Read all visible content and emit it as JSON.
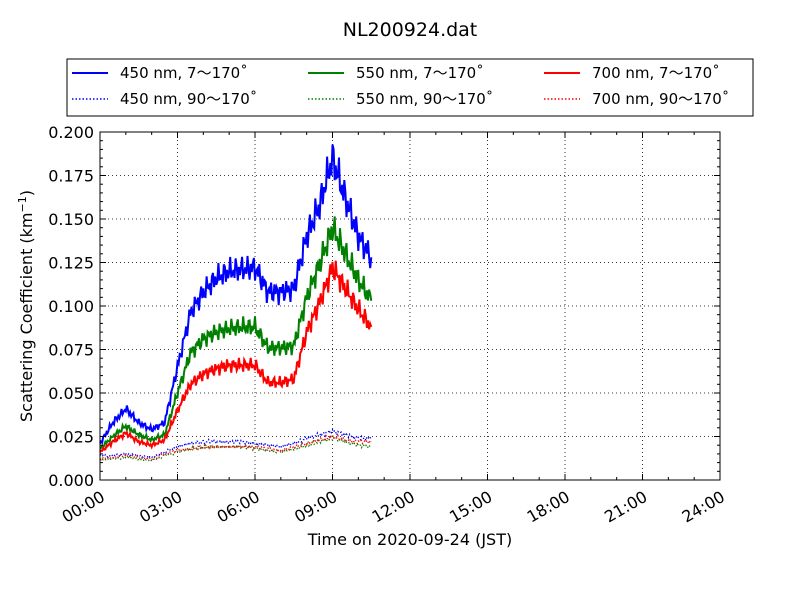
{
  "chart_data": {
    "type": "line",
    "title": "NL200924.dat",
    "xlabel": "Time on 2020-09-24 (JST)",
    "ylabel": "Scattering Coefficient (km",
    "ylabel_sup": "−1",
    "ylabel_end": ")",
    "xlim": [
      "2020-09-24 00:00",
      "2020-09-25 00:00"
    ],
    "ylim": [
      0.0,
      0.2
    ],
    "grid": true,
    "legend_position": "top",
    "x_ticks": [
      "00:00",
      "03:00",
      "06:00",
      "09:00",
      "12:00",
      "15:00",
      "18:00",
      "21:00",
      "24:00"
    ],
    "y_ticks": [
      "0.000",
      "0.025",
      "0.050",
      "0.075",
      "0.100",
      "0.125",
      "0.150",
      "0.175",
      "0.200"
    ],
    "x": [
      "00:00",
      "00:30",
      "01:00",
      "01:30",
      "02:00",
      "02:30",
      "03:00",
      "03:30",
      "04:00",
      "04:30",
      "05:00",
      "05:30",
      "06:00",
      "06:30",
      "07:00",
      "07:30",
      "08:00",
      "08:30",
      "09:00",
      "09:30",
      "10:00",
      "10:30"
    ],
    "series": [
      {
        "name": "450 nm, 7～170˚",
        "color": "#0000ff",
        "style": "solid",
        "values": [
          0.021,
          0.033,
          0.041,
          0.033,
          0.029,
          0.033,
          0.065,
          0.096,
          0.108,
          0.116,
          0.12,
          0.121,
          0.122,
          0.108,
          0.108,
          0.11,
          0.14,
          0.158,
          0.185,
          0.162,
          0.14,
          0.128
        ]
      },
      {
        "name": "450 nm, 90～170˚",
        "color": "#0000ff",
        "style": "dotted",
        "values": [
          0.014,
          0.014,
          0.015,
          0.014,
          0.013,
          0.016,
          0.019,
          0.021,
          0.022,
          0.022,
          0.022,
          0.022,
          0.021,
          0.02,
          0.019,
          0.021,
          0.024,
          0.026,
          0.028,
          0.026,
          0.024,
          0.024
        ]
      },
      {
        "name": "550 nm, 7～170˚",
        "color": "#008000",
        "style": "solid",
        "values": [
          0.018,
          0.025,
          0.031,
          0.026,
          0.023,
          0.026,
          0.05,
          0.073,
          0.081,
          0.085,
          0.087,
          0.088,
          0.088,
          0.076,
          0.076,
          0.077,
          0.105,
          0.124,
          0.145,
          0.13,
          0.115,
          0.103
        ]
      },
      {
        "name": "550 nm, 90～170˚",
        "color": "#008000",
        "style": "dotted",
        "values": [
          0.012,
          0.012,
          0.013,
          0.012,
          0.011,
          0.014,
          0.016,
          0.018,
          0.019,
          0.019,
          0.019,
          0.019,
          0.018,
          0.017,
          0.016,
          0.018,
          0.02,
          0.022,
          0.024,
          0.022,
          0.02,
          0.019
        ]
      },
      {
        "name": "700 nm, 7～170˚",
        "color": "#ff0000",
        "style": "solid",
        "values": [
          0.016,
          0.022,
          0.027,
          0.022,
          0.02,
          0.023,
          0.04,
          0.055,
          0.061,
          0.064,
          0.066,
          0.066,
          0.066,
          0.056,
          0.056,
          0.058,
          0.085,
          0.102,
          0.122,
          0.11,
          0.098,
          0.088
        ]
      },
      {
        "name": "700 nm, 90～170˚",
        "color": "#ff0000",
        "style": "dotted",
        "values": [
          0.012,
          0.013,
          0.014,
          0.013,
          0.012,
          0.015,
          0.017,
          0.018,
          0.019,
          0.019,
          0.019,
          0.019,
          0.019,
          0.018,
          0.017,
          0.019,
          0.021,
          0.023,
          0.025,
          0.023,
          0.022,
          0.022
        ]
      }
    ]
  }
}
